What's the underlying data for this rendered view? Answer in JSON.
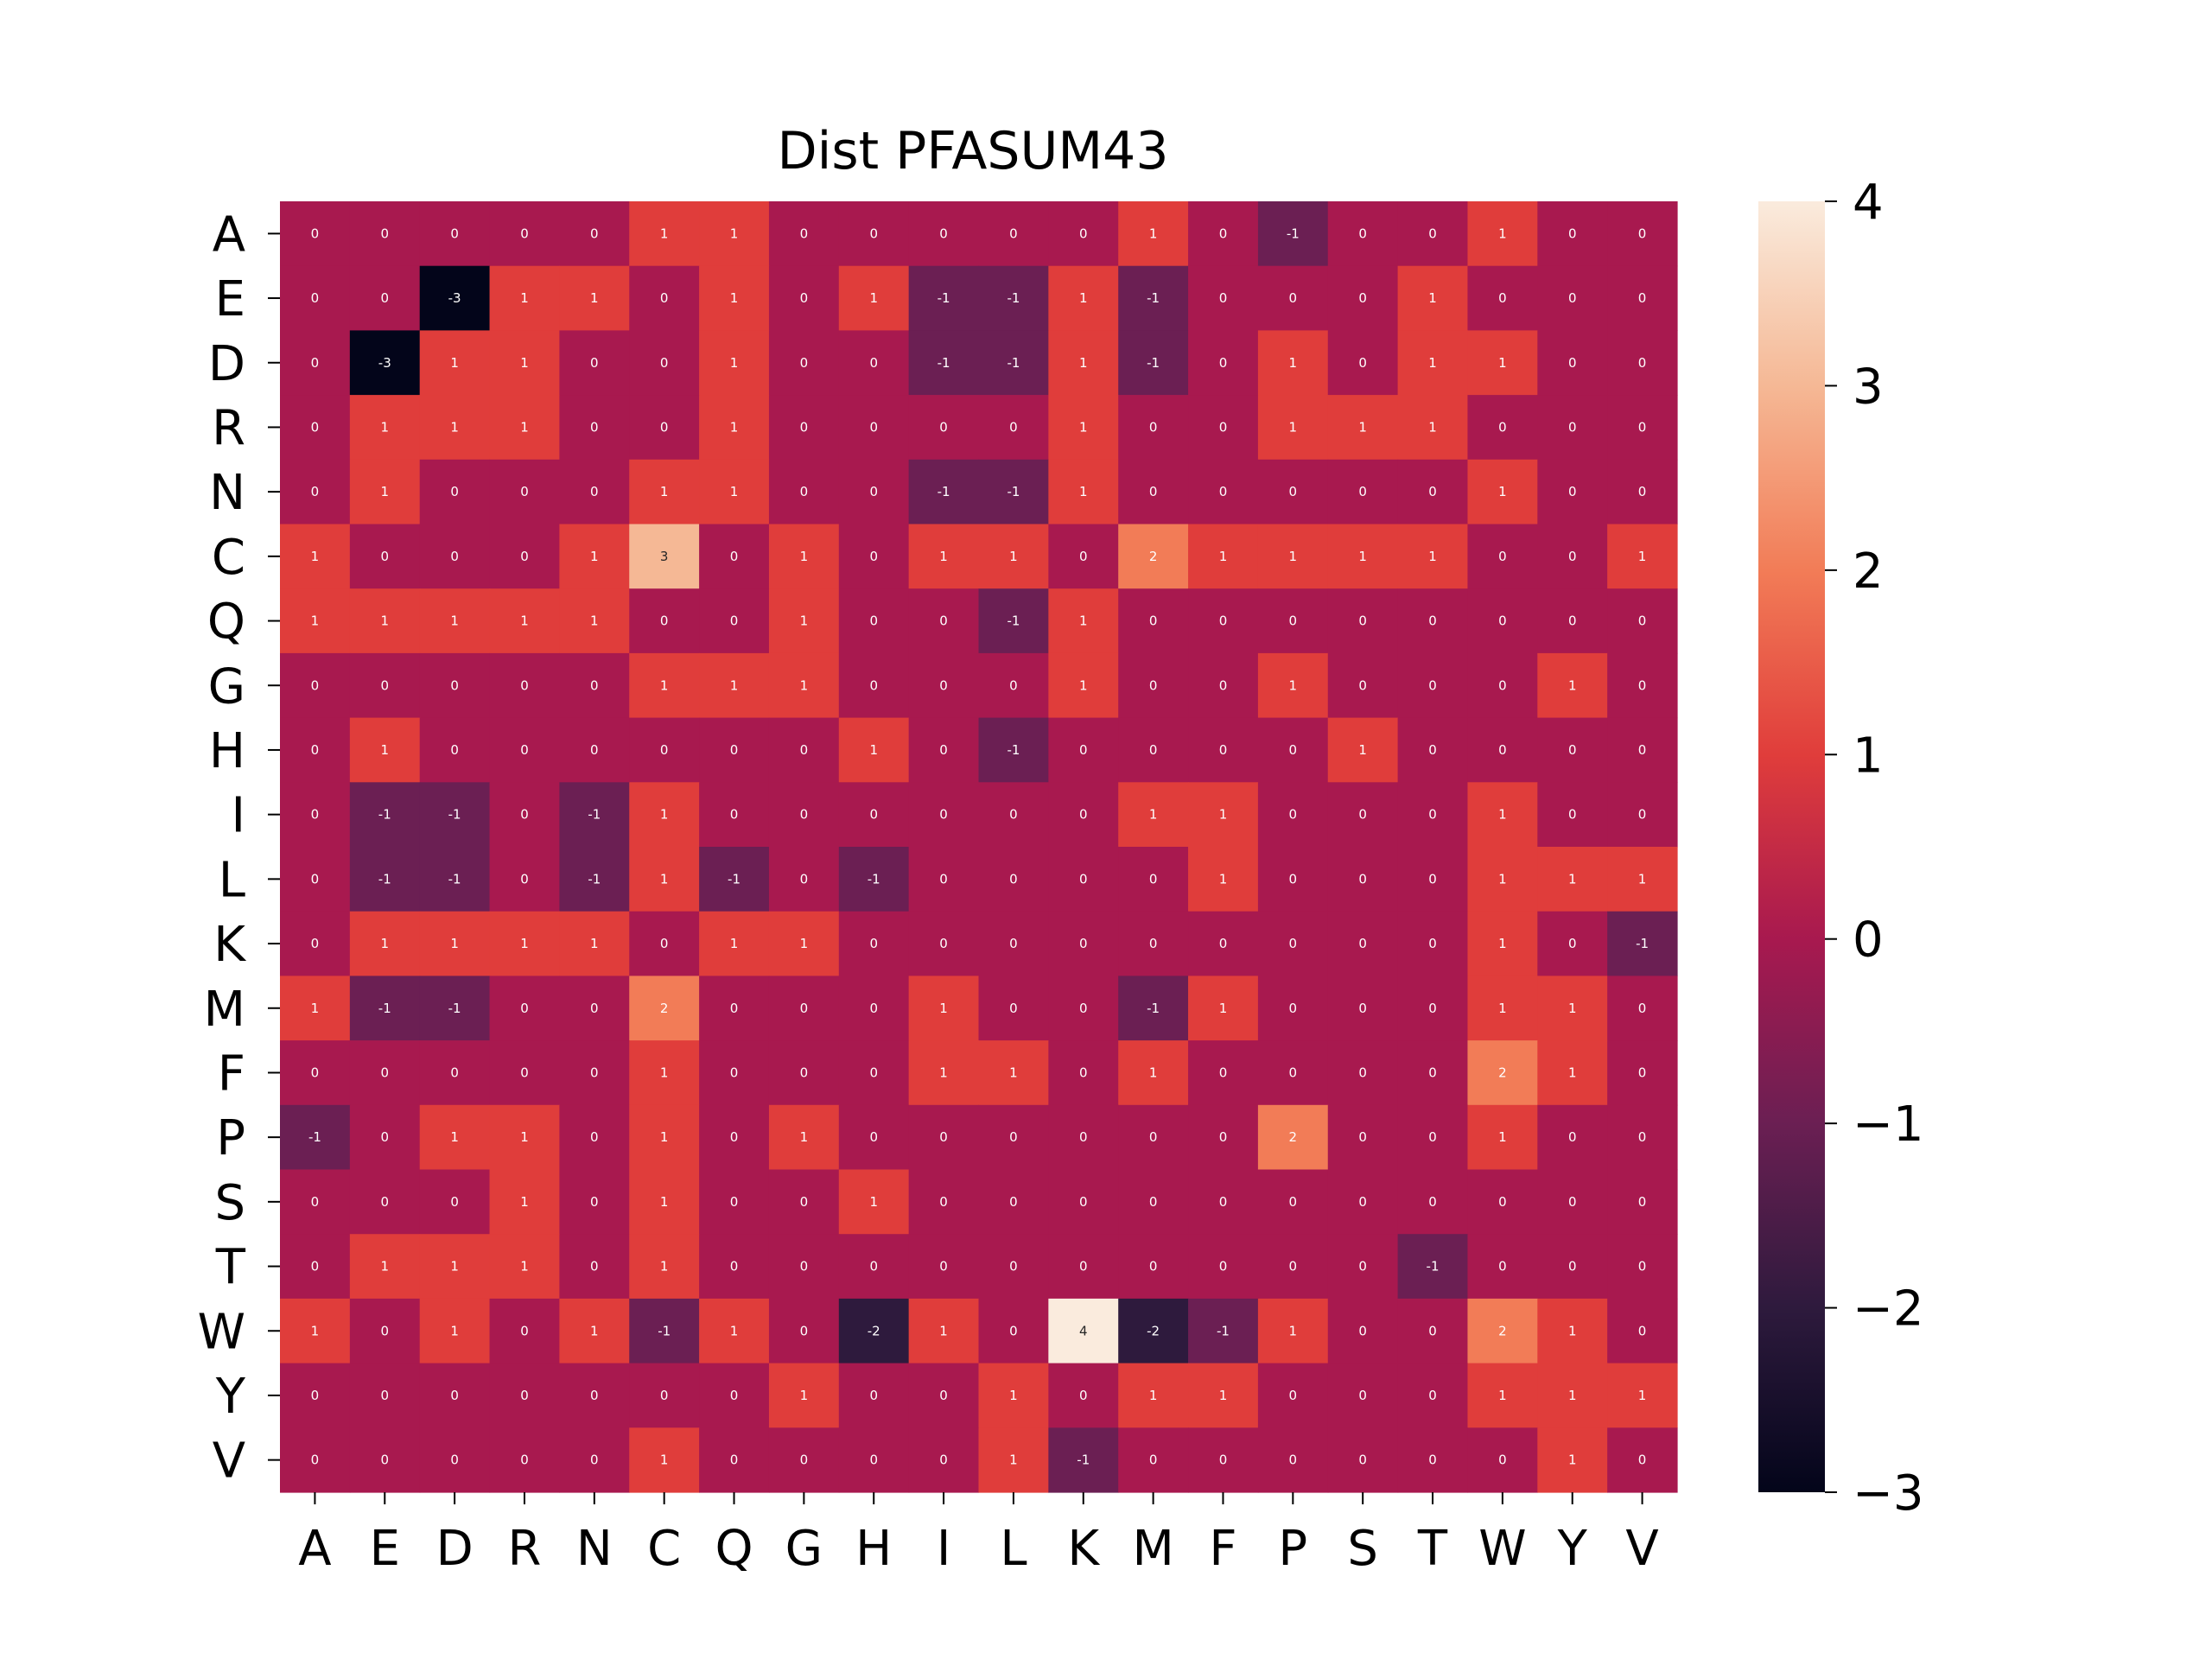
{
  "chart_data": {
    "type": "heatmap",
    "title": "Dist PFASUM43",
    "xlabel": "",
    "ylabel": "",
    "x_categories": [
      "A",
      "E",
      "D",
      "R",
      "N",
      "C",
      "Q",
      "G",
      "H",
      "I",
      "L",
      "K",
      "M",
      "F",
      "P",
      "S",
      "T",
      "W",
      "Y",
      "V"
    ],
    "y_categories": [
      "A",
      "E",
      "D",
      "R",
      "N",
      "C",
      "Q",
      "G",
      "H",
      "I",
      "L",
      "K",
      "M",
      "F",
      "P",
      "S",
      "T",
      "W",
      "Y",
      "V"
    ],
    "values": [
      [
        0,
        0,
        0,
        0,
        0,
        1,
        1,
        0,
        0,
        0,
        0,
        0,
        1,
        0,
        -1,
        0,
        0,
        1,
        0,
        0
      ],
      [
        0,
        0,
        -3,
        1,
        1,
        0,
        1,
        0,
        1,
        -1,
        -1,
        1,
        -1,
        0,
        0,
        0,
        1,
        0,
        0,
        0
      ],
      [
        0,
        -3,
        1,
        1,
        0,
        0,
        1,
        0,
        0,
        -1,
        -1,
        1,
        -1,
        0,
        1,
        0,
        1,
        1,
        0,
        0
      ],
      [
        0,
        1,
        1,
        1,
        0,
        0,
        1,
        0,
        0,
        0,
        0,
        1,
        0,
        0,
        1,
        1,
        1,
        0,
        0,
        0
      ],
      [
        0,
        1,
        0,
        0,
        0,
        1,
        1,
        0,
        0,
        -1,
        -1,
        1,
        0,
        0,
        0,
        0,
        0,
        1,
        0,
        0
      ],
      [
        1,
        0,
        0,
        0,
        1,
        3,
        0,
        1,
        0,
        1,
        1,
        0,
        2,
        1,
        1,
        1,
        1,
        0,
        0,
        1
      ],
      [
        1,
        1,
        1,
        1,
        1,
        0,
        0,
        1,
        0,
        0,
        -1,
        1,
        0,
        0,
        0,
        0,
        0,
        0,
        0,
        0
      ],
      [
        0,
        0,
        0,
        0,
        0,
        1,
        1,
        1,
        0,
        0,
        0,
        1,
        0,
        0,
        1,
        0,
        0,
        0,
        1,
        0
      ],
      [
        0,
        1,
        0,
        0,
        0,
        0,
        0,
        0,
        1,
        0,
        -1,
        0,
        0,
        0,
        0,
        1,
        0,
        0,
        0,
        0
      ],
      [
        0,
        -1,
        -1,
        0,
        -1,
        1,
        0,
        0,
        0,
        0,
        0,
        0,
        1,
        1,
        0,
        0,
        0,
        1,
        0,
        0
      ],
      [
        0,
        -1,
        -1,
        0,
        -1,
        1,
        -1,
        0,
        -1,
        0,
        0,
        0,
        0,
        1,
        0,
        0,
        0,
        1,
        1,
        1
      ],
      [
        0,
        1,
        1,
        1,
        1,
        0,
        1,
        1,
        0,
        0,
        0,
        0,
        0,
        0,
        0,
        0,
        0,
        1,
        0,
        -1
      ],
      [
        1,
        -1,
        -1,
        0,
        0,
        2,
        0,
        0,
        0,
        1,
        0,
        0,
        -1,
        1,
        0,
        0,
        0,
        1,
        1,
        0
      ],
      [
        0,
        0,
        0,
        0,
        0,
        1,
        0,
        0,
        0,
        1,
        1,
        0,
        1,
        0,
        0,
        0,
        0,
        2,
        1,
        0
      ],
      [
        -1,
        0,
        1,
        1,
        0,
        1,
        0,
        1,
        0,
        0,
        0,
        0,
        0,
        0,
        2,
        0,
        0,
        1,
        0,
        0
      ],
      [
        0,
        0,
        0,
        1,
        0,
        1,
        0,
        0,
        1,
        0,
        0,
        0,
        0,
        0,
        0,
        0,
        0,
        0,
        0,
        0
      ],
      [
        0,
        1,
        1,
        1,
        0,
        1,
        0,
        0,
        0,
        0,
        0,
        0,
        0,
        0,
        0,
        0,
        -1,
        0,
        0,
        0
      ],
      [
        1,
        0,
        1,
        0,
        1,
        -1,
        1,
        0,
        -2,
        1,
        0,
        4,
        -2,
        -1,
        1,
        0,
        0,
        2,
        1,
        0
      ],
      [
        0,
        0,
        0,
        0,
        0,
        0,
        0,
        1,
        0,
        0,
        1,
        0,
        1,
        1,
        0,
        0,
        0,
        1,
        1,
        1
      ],
      [
        0,
        0,
        0,
        0,
        0,
        1,
        0,
        0,
        0,
        0,
        1,
        -1,
        0,
        0,
        0,
        0,
        0,
        0,
        1,
        0
      ]
    ],
    "colorbar": {
      "min": -3,
      "max": 4,
      "ticks": [
        "−3",
        "−2",
        "−1",
        "0",
        "1",
        "2",
        "3",
        "4"
      ],
      "colors": {
        "-3": "#03051a",
        "-2": "#2e1a3d",
        "-1": "#6b1f53",
        "0": "#a8194f",
        "1": "#e03d3b",
        "2": "#f27c57",
        "3": "#f5b895",
        "4": "#faebdd"
      }
    },
    "annotations": true,
    "grid": false
  }
}
